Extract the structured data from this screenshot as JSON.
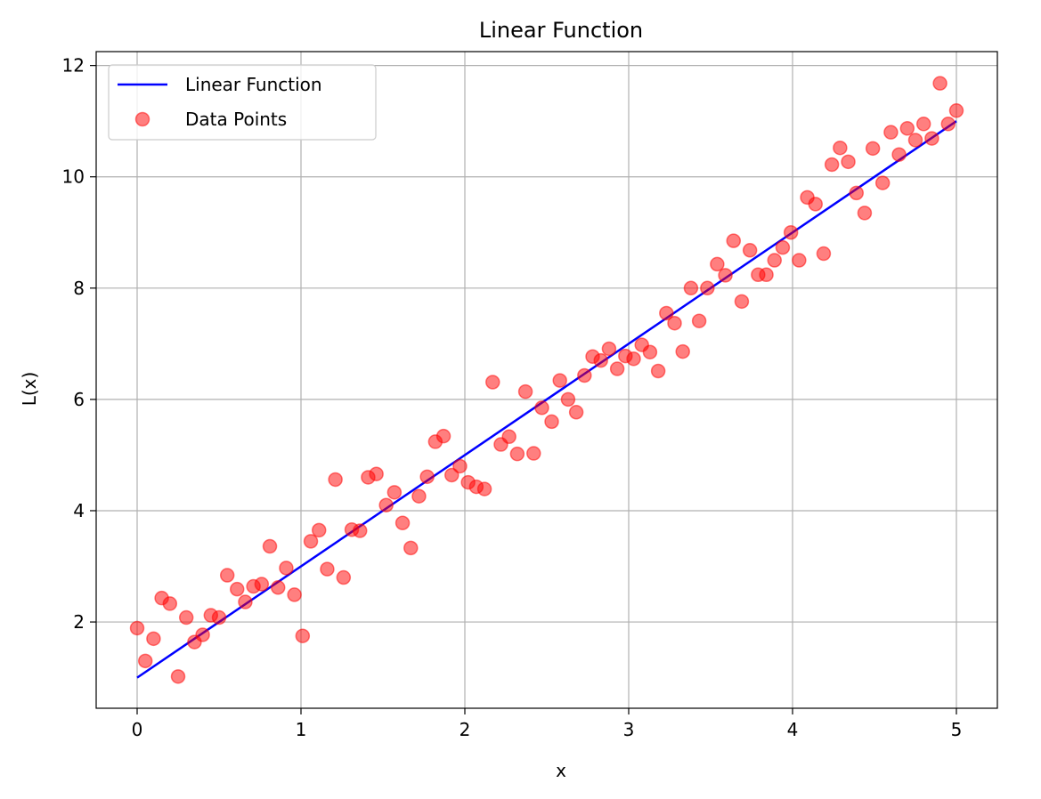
{
  "chart_data": {
    "type": "scatter",
    "title": "Linear Function",
    "xlabel": "x",
    "ylabel": "L(x)",
    "xlim": [
      -0.25,
      5.25
    ],
    "ylim": [
      0.45,
      12.25
    ],
    "xticks": [
      0,
      1,
      2,
      3,
      4,
      5
    ],
    "yticks": [
      2,
      4,
      6,
      8,
      10,
      12
    ],
    "grid": true,
    "legend_position": "top-left",
    "series": [
      {
        "name": "Linear Function",
        "kind": "line",
        "color": "#0000ff",
        "x": [
          0,
          5
        ],
        "y": [
          1,
          11
        ]
      },
      {
        "name": "Data Points",
        "kind": "scatter",
        "color": "#ff0000",
        "x": [
          0.0,
          0.05,
          0.1,
          0.15,
          0.2,
          0.25,
          0.3,
          0.35,
          0.4,
          0.45,
          0.5,
          0.55,
          0.61,
          0.66,
          0.71,
          0.76,
          0.81,
          0.86,
          0.91,
          0.96,
          1.01,
          1.06,
          1.11,
          1.16,
          1.21,
          1.26,
          1.31,
          1.36,
          1.41,
          1.46,
          1.52,
          1.57,
          1.62,
          1.67,
          1.72,
          1.77,
          1.82,
          1.87,
          1.92,
          1.97,
          2.02,
          2.07,
          2.12,
          2.17,
          2.22,
          2.27,
          2.32,
          2.37,
          2.42,
          2.47,
          2.53,
          2.58,
          2.63,
          2.68,
          2.73,
          2.78,
          2.83,
          2.88,
          2.93,
          2.98,
          3.03,
          3.08,
          3.13,
          3.18,
          3.23,
          3.28,
          3.33,
          3.38,
          3.43,
          3.48,
          3.54,
          3.59,
          3.64,
          3.69,
          3.74,
          3.79,
          3.84,
          3.89,
          3.94,
          3.99,
          4.04,
          4.09,
          4.14,
          4.19,
          4.24,
          4.29,
          4.34,
          4.39,
          4.44,
          4.49,
          4.55,
          4.6,
          4.65,
          4.7,
          4.75,
          4.8,
          4.85,
          4.9,
          4.95,
          5.0
        ],
        "y": [
          1.89,
          1.3,
          1.7,
          2.43,
          2.33,
          1.02,
          2.08,
          1.64,
          1.77,
          2.12,
          2.08,
          2.84,
          2.59,
          2.36,
          2.64,
          2.68,
          3.36,
          2.62,
          2.97,
          2.49,
          1.75,
          3.45,
          3.65,
          2.95,
          4.56,
          2.8,
          3.66,
          3.64,
          4.6,
          4.66,
          4.1,
          4.33,
          3.78,
          3.33,
          4.26,
          4.61,
          5.24,
          5.34,
          4.64,
          4.8,
          4.51,
          4.43,
          4.39,
          6.31,
          5.19,
          5.33,
          5.02,
          6.14,
          5.03,
          5.85,
          5.6,
          6.34,
          6.0,
          5.77,
          6.43,
          6.77,
          6.7,
          6.91,
          6.55,
          6.78,
          6.73,
          6.98,
          6.85,
          6.51,
          7.55,
          7.37,
          6.86,
          8.0,
          7.41,
          8.0,
          8.43,
          8.23,
          8.85,
          7.76,
          8.68,
          8.24,
          8.24,
          8.5,
          8.73,
          9.0,
          8.5,
          9.63,
          9.51,
          8.62,
          10.22,
          10.52,
          10.27,
          9.71,
          9.35,
          10.51,
          9.89,
          10.8,
          10.4,
          10.87,
          10.66,
          10.95,
          10.69,
          11.68,
          10.95,
          11.19
        ]
      }
    ]
  }
}
